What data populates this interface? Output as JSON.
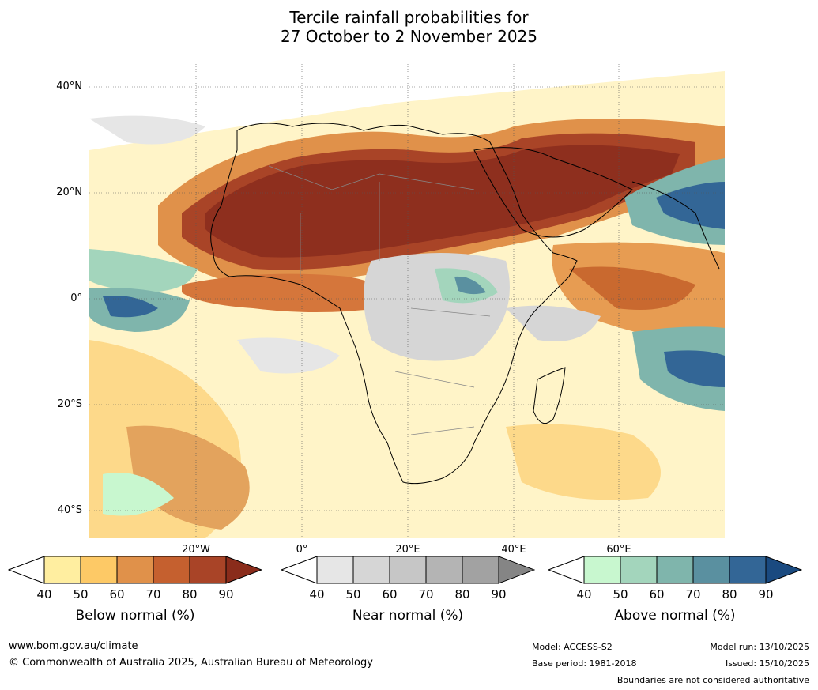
{
  "title_line1": "Tercile rainfall probabilities for",
  "title_line2": "27 October to 2 November 2025",
  "lat_labels": [
    "40°N",
    "20°N",
    "0°",
    "20°S",
    "40°S"
  ],
  "lon_labels": [
    "20°W",
    "0°",
    "20°E",
    "40°E",
    "60°E"
  ],
  "colorbars": [
    {
      "caption": "Below normal (%)",
      "ticks": [
        "40",
        "50",
        "60",
        "70",
        "80",
        "90"
      ],
      "colors": [
        "#ffeea0",
        "#fdc966",
        "#e0914a",
        "#c5602f",
        "#a94427",
        "#8a2c1b"
      ]
    },
    {
      "caption": "Near normal (%)",
      "ticks": [
        "40",
        "50",
        "60",
        "70",
        "80",
        "90"
      ],
      "colors": [
        "#e6e6e6",
        "#d6d6d6",
        "#c6c6c6",
        "#b4b4b4",
        "#a2a2a2",
        "#858585"
      ]
    },
    {
      "caption": "Above normal (%)",
      "ticks": [
        "40",
        "50",
        "60",
        "70",
        "80",
        "90"
      ],
      "colors": [
        "#c8f7cf",
        "#a3d5bc",
        "#7fb5ac",
        "#5a90a0",
        "#336696",
        "#1a4a80"
      ]
    }
  ],
  "footer": {
    "url": "www.bom.gov.au/climate",
    "copyright": "© Commonwealth of Australia 2025, Australian Bureau of Meteorology",
    "model": "Model: ACCESS-S2",
    "base_period": "Base period: 1981-2018",
    "model_run": "Model run: 13/10/2025",
    "issued": "Issued: 15/10/2025",
    "disclaimer": "Boundaries are not considered authoritative"
  }
}
